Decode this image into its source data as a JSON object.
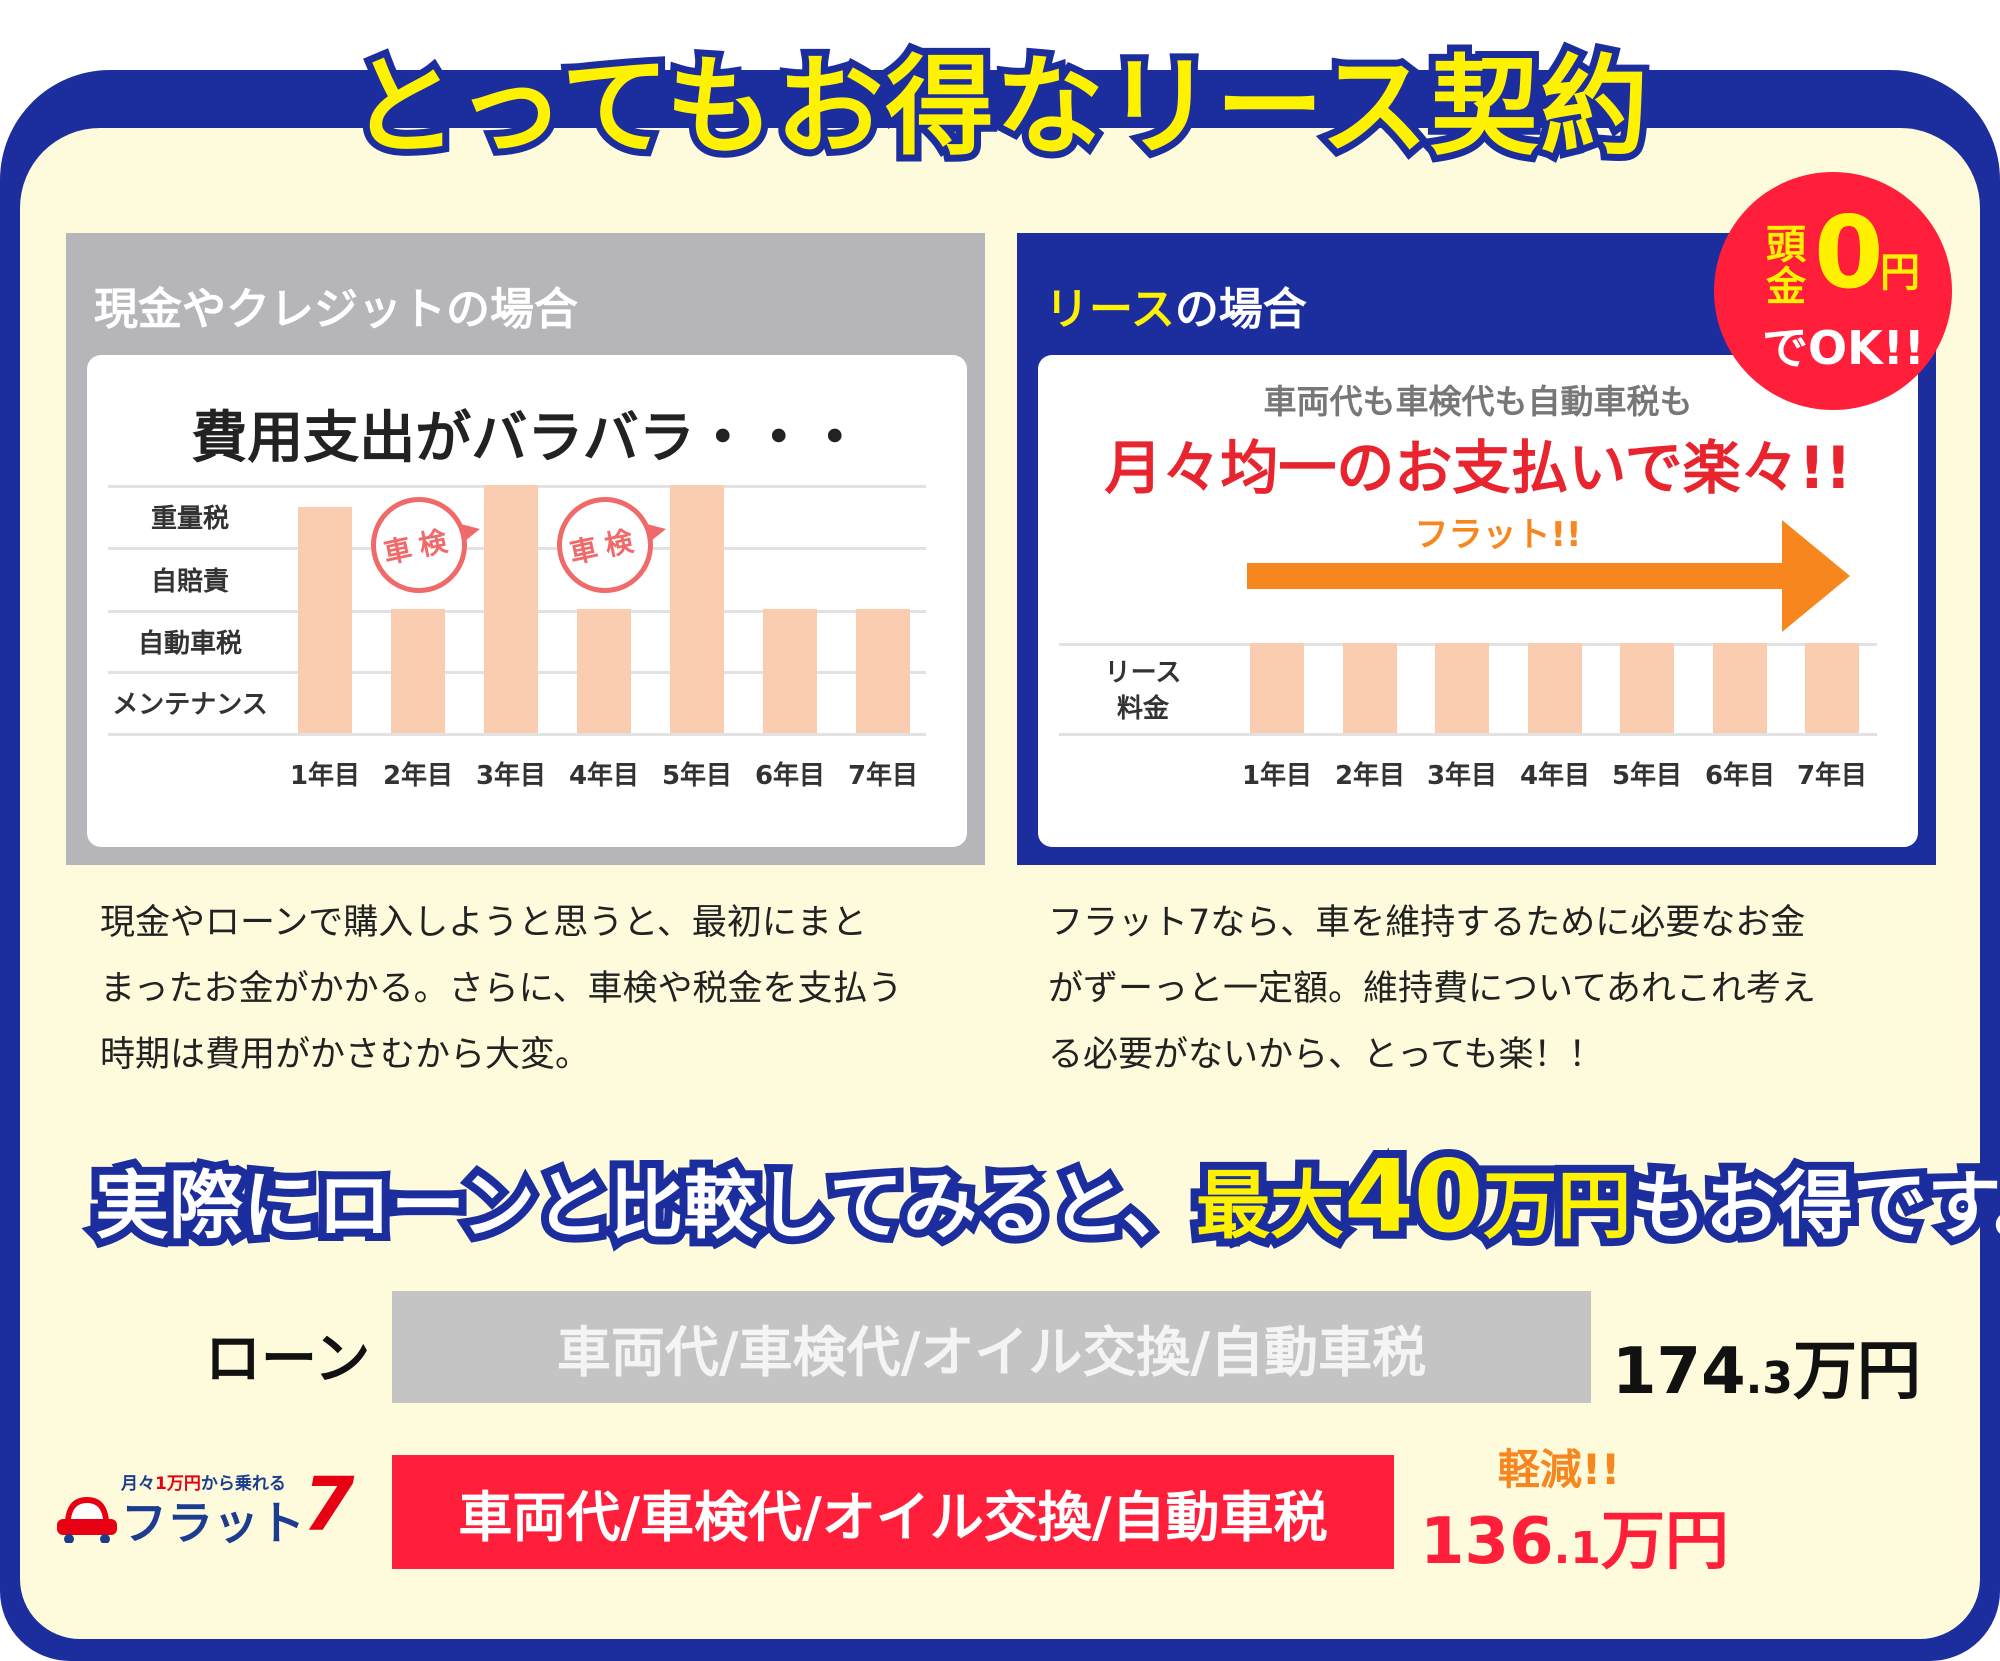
{
  "title": "とってもお得なリース契約",
  "left": {
    "header": "現金やクレジットの場合",
    "chart_title": "費用支出がバラバラ・・・",
    "rows": [
      "重量税",
      "自賠責",
      "自動車税",
      "メンテナンス"
    ],
    "years": [
      "1年目",
      "2年目",
      "3年目",
      "4年目",
      "5年目",
      "6年目",
      "7年目"
    ],
    "bar_levels": [
      3.65,
      2,
      4,
      2,
      4,
      2,
      2
    ],
    "stamp": "車検",
    "stamp_years": [
      "2年目",
      "4年目"
    ],
    "description": [
      "現金やローンで購入しようと思うと、最初にまと",
      "まったお金がかかる。さらに、車検や税金を支払う",
      "時期は費用がかさむから大変。"
    ]
  },
  "right": {
    "header_a": "リース",
    "header_b": "の場合",
    "sub": "車両代も車検代も自動車税も",
    "main": "月々均一のお支払いで楽々!!",
    "arrow_label": "フラット!!",
    "row_label_1": "リース",
    "row_label_2": "料金",
    "years": [
      "1年目",
      "2年目",
      "3年目",
      "4年目",
      "5年目",
      "6年目",
      "7年目"
    ],
    "bar_levels": [
      1,
      1,
      1,
      1,
      1,
      1,
      1
    ],
    "description": [
      "フラット7なら、車を維持するために必要なお金",
      "がずーっと一定額。維持費についてあれこれ考え",
      "る必要がないから、とっても楽！！"
    ]
  },
  "badge": {
    "line1a": "頭",
    "line1b": "金",
    "zero": "0",
    "yen": "円",
    "ok": "でOK!!"
  },
  "headline": {
    "a": "実際にローンと比較してみると、",
    "b": "最大",
    "c": "40",
    "d": "万円",
    "e": "もお得です。"
  },
  "comparison": {
    "loan": {
      "label": "ローン",
      "items": "車両代/車検代/オイル交換/自動車税",
      "value_int": "174",
      "value_dec": ".3",
      "unit": "万円",
      "value": 174.3
    },
    "flat": {
      "logo_tag_a": "月々",
      "logo_tag_b": "1万円",
      "logo_tag_c": "から乗れる",
      "logo_name": "フラット",
      "logo_num": "7",
      "items": "車両代/車検代/オイル交換/自動車税",
      "reduced": "軽減!!",
      "value_int": "136",
      "value_dec": ".1",
      "unit": "万円",
      "value": 136.1
    }
  },
  "colors": {
    "blue": "#1c2e9e",
    "yellow": "#fff200",
    "red": "#ff1f3a",
    "orange": "#f7861f",
    "bar": "#fbcdb0",
    "gray": "#b6b6ba"
  }
}
